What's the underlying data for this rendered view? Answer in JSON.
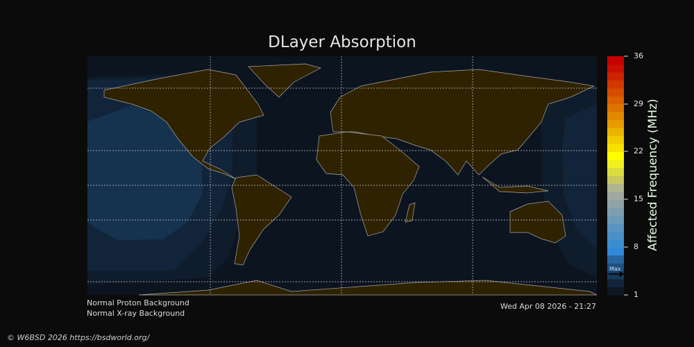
{
  "title": "DLayer Absorption",
  "colorbar": {
    "label": "Affected Frequency (MHz)",
    "ticks": [
      "36",
      "29",
      "22",
      "15",
      "8",
      "1"
    ],
    "min": 1,
    "max": 36,
    "max_marker": "Max",
    "max_marker_value": 4,
    "colors": [
      "#0e1622",
      "#11253a",
      "#173a5a",
      "#1e5182",
      "#2866a0",
      "#2e8ad8",
      "#3a8ed0",
      "#4a90c8",
      "#5a94c0",
      "#6c9ab8",
      "#7e9fb0",
      "#90a4a8",
      "#a0a8a0",
      "#b0b490",
      "#c8c860",
      "#dcdc40",
      "#f0f020",
      "#ffff00",
      "#f8e000",
      "#f0cc00",
      "#eab400",
      "#e69c00",
      "#e28800",
      "#de7400",
      "#da6000",
      "#d44c00",
      "#d03800",
      "#cc2400",
      "#c81000",
      "#c40000"
    ]
  },
  "status": {
    "proton": "Normal Proton Background",
    "xray": "Normal X-ray Background",
    "timestamp": "Wed Apr 08 2026 - 21:27"
  },
  "footer": "© W6BSD 2026 https://bsdworld.org/",
  "colors": {
    "land": "#2f2200",
    "ocean": "#0c1420",
    "absorption": "#15324f",
    "coast": "#a8a8a8"
  }
}
